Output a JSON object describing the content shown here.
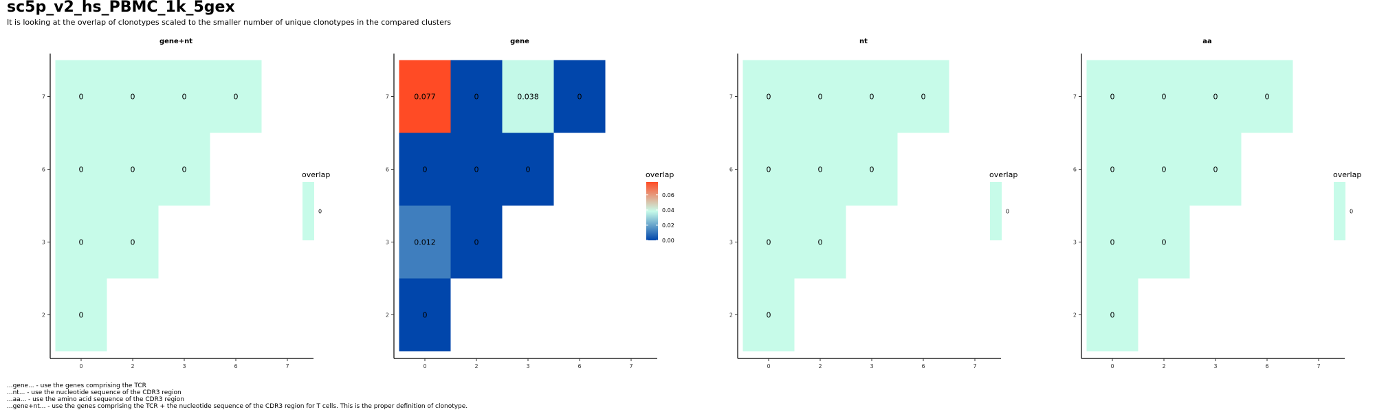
{
  "title": "sc5p_v2_hs_PBMC_1k_5gex",
  "subtitle": "It is looking at the overlap of clonotypes scaled to the smaller number of unique clonotypes in the compared clusters",
  "footnotes": [
    "...gene... - use the genes comprising the TCR",
    "...nt... - use the nucleotide sequence of the CDR3 region",
    "...aa... - use the amino acid sequence of the CDR3 region",
    "...gene+nt... - use the genes comprising the TCR + the nucleotide sequence of the CDR3 region for T cells. This is the proper definition of clonotype."
  ],
  "chart_data": [
    {
      "type": "heatmap",
      "title": "gene+nt",
      "x_categories": [
        "0",
        "2",
        "3",
        "6",
        "7"
      ],
      "y_categories": [
        "2",
        "3",
        "6",
        "7"
      ],
      "cells": [
        {
          "x": "0",
          "y": "7",
          "value": 0,
          "label": "0"
        },
        {
          "x": "2",
          "y": "7",
          "value": 0,
          "label": "0"
        },
        {
          "x": "3",
          "y": "7",
          "value": 0,
          "label": "0"
        },
        {
          "x": "6",
          "y": "7",
          "value": 0,
          "label": "0"
        },
        {
          "x": "0",
          "y": "6",
          "value": 0,
          "label": "0"
        },
        {
          "x": "2",
          "y": "6",
          "value": 0,
          "label": "0"
        },
        {
          "x": "3",
          "y": "6",
          "value": 0,
          "label": "0"
        },
        {
          "x": "0",
          "y": "3",
          "value": 0,
          "label": "0"
        },
        {
          "x": "2",
          "y": "3",
          "value": 0,
          "label": "0"
        },
        {
          "x": "0",
          "y": "2",
          "value": 0,
          "label": "0"
        }
      ],
      "legend": {
        "title": "overlap",
        "ticks": [
          0
        ],
        "tick_labels": [
          "0"
        ],
        "range": [
          0,
          0
        ],
        "colors": [
          "#c7fbe9"
        ]
      }
    },
    {
      "type": "heatmap",
      "title": "gene",
      "x_categories": [
        "0",
        "2",
        "3",
        "6",
        "7"
      ],
      "y_categories": [
        "2",
        "3",
        "6",
        "7"
      ],
      "cells": [
        {
          "x": "0",
          "y": "7",
          "value": 0.077,
          "label": "0.077"
        },
        {
          "x": "2",
          "y": "7",
          "value": 0,
          "label": "0"
        },
        {
          "x": "3",
          "y": "7",
          "value": 0.038,
          "label": "0.038"
        },
        {
          "x": "6",
          "y": "7",
          "value": 0,
          "label": "0"
        },
        {
          "x": "0",
          "y": "6",
          "value": 0,
          "label": "0"
        },
        {
          "x": "2",
          "y": "6",
          "value": 0,
          "label": "0"
        },
        {
          "x": "3",
          "y": "6",
          "value": 0,
          "label": "0"
        },
        {
          "x": "0",
          "y": "3",
          "value": 0.012,
          "label": "0.012"
        },
        {
          "x": "2",
          "y": "3",
          "value": 0,
          "label": "0"
        },
        {
          "x": "0",
          "y": "2",
          "value": 0,
          "label": "0"
        }
      ],
      "legend": {
        "title": "overlap",
        "ticks": [
          0,
          0.02,
          0.04,
          0.06
        ],
        "tick_labels": [
          "0.00",
          "0.02",
          "0.04",
          "0.06"
        ],
        "range": [
          0,
          0.077
        ],
        "colors": [
          "#0146ab",
          "#c7fbe9",
          "#ff4b25"
        ]
      }
    },
    {
      "type": "heatmap",
      "title": "nt",
      "x_categories": [
        "0",
        "2",
        "3",
        "6",
        "7"
      ],
      "y_categories": [
        "2",
        "3",
        "6",
        "7"
      ],
      "cells": [
        {
          "x": "0",
          "y": "7",
          "value": 0,
          "label": "0"
        },
        {
          "x": "2",
          "y": "7",
          "value": 0,
          "label": "0"
        },
        {
          "x": "3",
          "y": "7",
          "value": 0,
          "label": "0"
        },
        {
          "x": "6",
          "y": "7",
          "value": 0,
          "label": "0"
        },
        {
          "x": "0",
          "y": "6",
          "value": 0,
          "label": "0"
        },
        {
          "x": "2",
          "y": "6",
          "value": 0,
          "label": "0"
        },
        {
          "x": "3",
          "y": "6",
          "value": 0,
          "label": "0"
        },
        {
          "x": "0",
          "y": "3",
          "value": 0,
          "label": "0"
        },
        {
          "x": "2",
          "y": "3",
          "value": 0,
          "label": "0"
        },
        {
          "x": "0",
          "y": "2",
          "value": 0,
          "label": "0"
        }
      ],
      "legend": {
        "title": "overlap",
        "ticks": [
          0
        ],
        "tick_labels": [
          "0"
        ],
        "range": [
          0,
          0
        ],
        "colors": [
          "#c7fbe9"
        ]
      }
    },
    {
      "type": "heatmap",
      "title": "aa",
      "x_categories": [
        "0",
        "2",
        "3",
        "6",
        "7"
      ],
      "y_categories": [
        "2",
        "3",
        "6",
        "7"
      ],
      "cells": [
        {
          "x": "0",
          "y": "7",
          "value": 0,
          "label": "0"
        },
        {
          "x": "2",
          "y": "7",
          "value": 0,
          "label": "0"
        },
        {
          "x": "3",
          "y": "7",
          "value": 0,
          "label": "0"
        },
        {
          "x": "6",
          "y": "7",
          "value": 0,
          "label": "0"
        },
        {
          "x": "0",
          "y": "6",
          "value": 0,
          "label": "0"
        },
        {
          "x": "2",
          "y": "6",
          "value": 0,
          "label": "0"
        },
        {
          "x": "3",
          "y": "6",
          "value": 0,
          "label": "0"
        },
        {
          "x": "0",
          "y": "3",
          "value": 0,
          "label": "0"
        },
        {
          "x": "2",
          "y": "3",
          "value": 0,
          "label": "0"
        },
        {
          "x": "0",
          "y": "2",
          "value": 0,
          "label": "0"
        }
      ],
      "legend": {
        "title": "overlap",
        "ticks": [
          0
        ],
        "tick_labels": [
          "0"
        ],
        "range": [
          0,
          0
        ],
        "colors": [
          "#c7fbe9"
        ]
      }
    }
  ]
}
